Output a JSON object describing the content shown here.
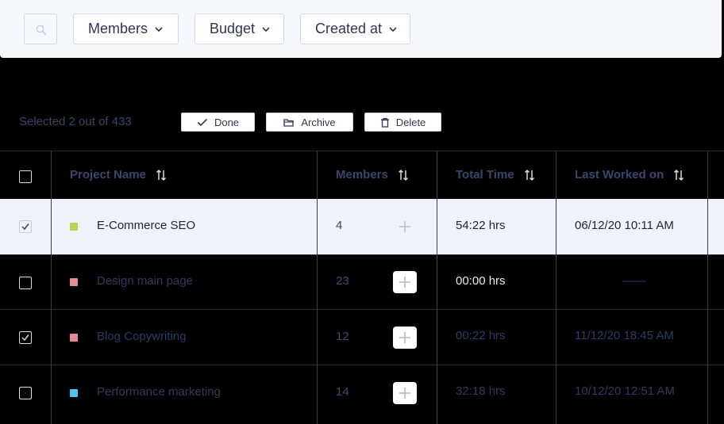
{
  "filters": {
    "members_label": "Members",
    "budget_label": "Budget",
    "created_label": "Created at"
  },
  "selection": {
    "text": "Selected 2 out of 433"
  },
  "actions": {
    "done": "Done",
    "archive": "Archive",
    "delete": "Delete"
  },
  "table": {
    "headers": {
      "project_name": "Project Name",
      "members": "Members",
      "total_time": "Total Time",
      "last_worked": "Last Worked on"
    },
    "rows": [
      {
        "checked": true,
        "color": "#b9d45b",
        "name": "E-Commerce SEO",
        "members": "4",
        "time": "54:22 hrs",
        "last_worked": "06/12/20  10:11 AM"
      },
      {
        "checked": false,
        "color": "#e48a98",
        "name": "Design main page",
        "members": "23",
        "time": "00:00 hrs",
        "last_worked": "——"
      },
      {
        "checked": true,
        "color": "#e48a98",
        "name": "Blog Copywriting",
        "members": "12",
        "time": "00:22 hrs",
        "last_worked": "11/12/20  18:45 AM"
      },
      {
        "checked": false,
        "color": "#4fc3ee",
        "name": "Performance marketing",
        "members": "14",
        "time": "32:18 hrs",
        "last_worked": "10/12/20  12:51 AM"
      }
    ]
  },
  "colors": {
    "header_text": "#3b466e",
    "muted_text": "#2f3a63",
    "highlight_row": "#eef2fb"
  }
}
